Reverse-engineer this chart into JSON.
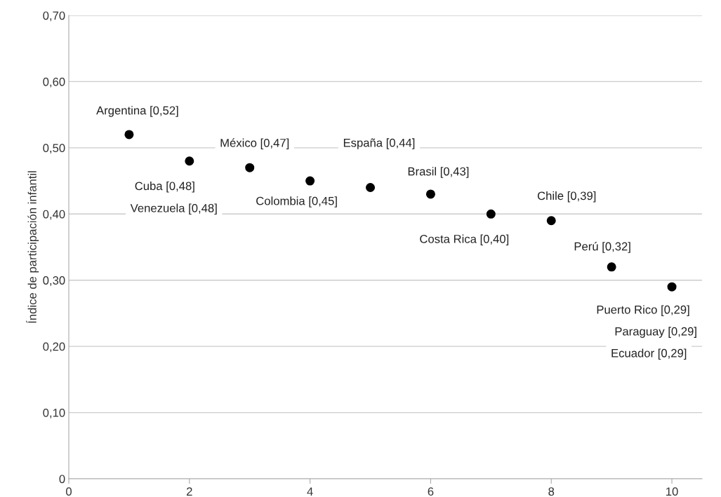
{
  "chart_data": {
    "type": "scatter",
    "ylabel": "Índice de participación infantil",
    "x": [
      1,
      2,
      3,
      4,
      5,
      6,
      7,
      8,
      9,
      10
    ],
    "series": [
      {
        "color": "#000000",
        "values": [
          0.52,
          0.48,
          0.47,
          0.45,
          0.44,
          0.43,
          0.4,
          0.39,
          0.32,
          0.29
        ]
      }
    ],
    "xlim": [
      0,
      10.5
    ],
    "xticks": [
      0,
      2,
      4,
      6,
      8,
      10
    ],
    "ylim": [
      0,
      0.7
    ],
    "yticks": [
      0,
      {
        "value": 0.1,
        "label": "0,10"
      },
      {
        "value": 0.2,
        "label": "0,20"
      },
      {
        "value": 0.3,
        "label": "0,30"
      },
      {
        "value": 0.4,
        "label": "0,40"
      },
      {
        "value": 0.5,
        "label": "0,50"
      },
      {
        "value": 0.6,
        "label": "0,60"
      },
      {
        "value": 0.7,
        "label": "0,70"
      }
    ],
    "grid": "y",
    "marker": "circle",
    "legend": false,
    "annotations": [
      {
        "text": "Argentina [0,52]",
        "x": 1,
        "y": 0.52
      },
      {
        "text": "Cuba [0,48]",
        "x": 2,
        "y": 0.48
      },
      "Venezuela [0,48]",
      {
        "text": "México [0,47]",
        "x": 3,
        "y": 0.47
      },
      {
        "text": "Colombia [0,45]",
        "x": 4,
        "y": 0.45
      },
      "España [0,44]",
      {
        "text": "Brasil [0,43]",
        "x": 6,
        "y": 0.43
      },
      {
        "text": "Costa Rica [0,40]",
        "x": 7,
        "y": 0.4
      },
      {
        "text": "Chile [0,39]",
        "x": 8,
        "y": 0.39
      },
      {
        "text": "Perú [0,32]",
        "x": 9,
        "y": 0.32
      },
      {
        "text": "Puerto Rico [0,29]",
        "x": 10,
        "y": 0.29
      },
      "Paraguay [0,29]",
      "Ecuador [0,29]"
    ]
  }
}
